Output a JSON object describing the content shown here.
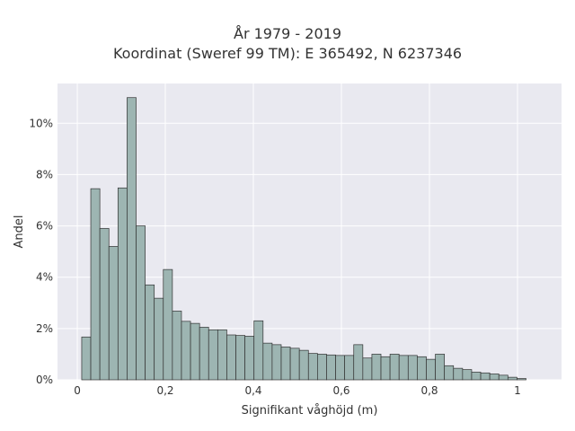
{
  "chart_data": {
    "type": "bar",
    "title_lines": [
      "År 1979 - 2019",
      "Koordinat (Sweref 99 TM): E 365492, N 6237346"
    ],
    "xlabel": "Signifikant våghöjd (m)",
    "ylabel": "Andel",
    "xlim": [
      -0.045,
      1.1
    ],
    "ylim": [
      0,
      0.1155
    ],
    "x_ticks": [
      0,
      0.2,
      0.4,
      0.6,
      0.8,
      1.0
    ],
    "x_tick_labels": [
      "0",
      "0,2",
      "0,4",
      "0,6",
      "0,8",
      "1"
    ],
    "y_ticks": [
      0,
      0.02,
      0.04,
      0.06,
      0.08,
      0.1
    ],
    "y_tick_labels": [
      "0%",
      "2%",
      "4%",
      "6%",
      "8%",
      "10%"
    ],
    "grid": true,
    "bin_width": 0.0206,
    "bin_start": 0.01,
    "values": [
      0.0167,
      0.0745,
      0.059,
      0.052,
      0.0748,
      0.11,
      0.06,
      0.037,
      0.0318,
      0.043,
      0.0268,
      0.0228,
      0.022,
      0.0205,
      0.0195,
      0.0195,
      0.0175,
      0.0173,
      0.017,
      0.023,
      0.0143,
      0.0137,
      0.0128,
      0.0123,
      0.0115,
      0.0103,
      0.01,
      0.0097,
      0.0095,
      0.0095,
      0.0137,
      0.0085,
      0.01,
      0.009,
      0.01,
      0.0095,
      0.0095,
      0.009,
      0.008,
      0.01,
      0.0055,
      0.0045,
      0.004,
      0.003,
      0.0027,
      0.0023,
      0.0018,
      0.001,
      0.0005
    ],
    "colors": {
      "bar_fill": "#9db5b2",
      "bar_stroke": "#333333",
      "plot_bg": "#e9e9f0",
      "grid": "#ffffff"
    }
  }
}
